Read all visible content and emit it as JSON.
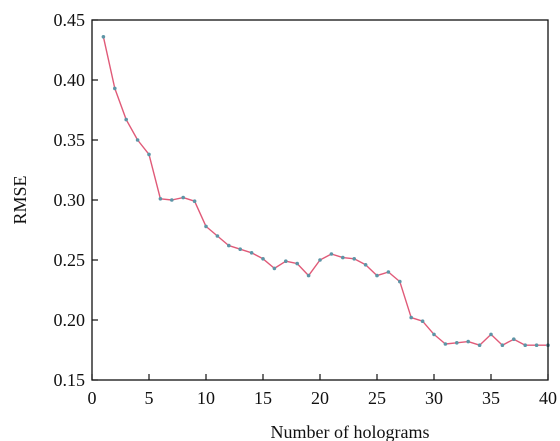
{
  "chart_data": {
    "type": "line",
    "xlabel": "Number of holograms",
    "ylabel": "RMSE",
    "xlim": [
      0,
      40
    ],
    "ylim": [
      0.15,
      0.45
    ],
    "xticks": [
      0,
      5,
      10,
      15,
      20,
      25,
      30,
      35,
      40
    ],
    "yticks": [
      0.15,
      0.2,
      0.25,
      0.3,
      0.35,
      0.4,
      0.45
    ],
    "ytick_labels": [
      "0.15",
      "0.20",
      "0.25",
      "0.30",
      "0.35",
      "0.40",
      "0.45"
    ],
    "grid": false,
    "series": [
      {
        "line_color": "#e05a78",
        "marker_color": "#5d95a6",
        "x": [
          1,
          2,
          3,
          4,
          5,
          6,
          7,
          8,
          9,
          10,
          11,
          12,
          13,
          14,
          15,
          16,
          17,
          18,
          19,
          20,
          21,
          22,
          23,
          24,
          25,
          26,
          27,
          28,
          29,
          30,
          31,
          32,
          33,
          34,
          35,
          36,
          37,
          38,
          39,
          40
        ],
        "y": [
          0.436,
          0.393,
          0.367,
          0.35,
          0.338,
          0.301,
          0.3,
          0.302,
          0.299,
          0.278,
          0.27,
          0.262,
          0.259,
          0.256,
          0.251,
          0.243,
          0.249,
          0.247,
          0.237,
          0.25,
          0.255,
          0.252,
          0.251,
          0.246,
          0.237,
          0.24,
          0.232,
          0.202,
          0.199,
          0.188,
          0.18,
          0.181,
          0.182,
          0.179,
          0.188,
          0.179,
          0.184,
          0.179,
          0.179,
          0.179
        ]
      }
    ]
  }
}
